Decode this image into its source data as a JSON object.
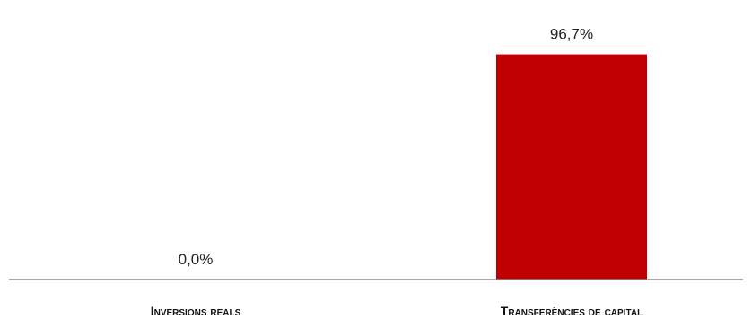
{
  "chart_data": {
    "type": "bar",
    "title": "",
    "xlabel": "",
    "ylabel": "",
    "categories": [
      "Inversions reals",
      "Transferències de capital"
    ],
    "values": [
      0.0,
      96.7
    ],
    "data_labels": [
      "0,0%",
      "96,7%"
    ],
    "ylim": [
      0,
      100
    ],
    "grid": false,
    "legend": "none",
    "bar_color": "#c00000",
    "axis_color": "#8c8c8c"
  }
}
